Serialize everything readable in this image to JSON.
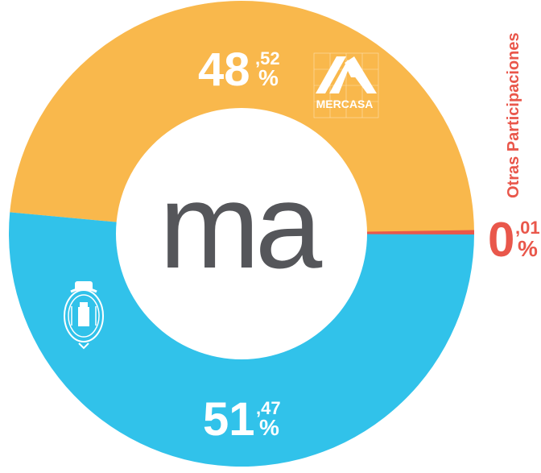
{
  "chart_data": {
    "type": "pie",
    "variant": "donut",
    "slices": [
      {
        "label": "Mercasa",
        "int": "48",
        "dec": ",52",
        "value": 48.52,
        "color": "#f9b84c"
      },
      {
        "label": "Otras Participaciones",
        "int": "0",
        "dec": ",01",
        "value": 0.01,
        "color": "#e9574b"
      },
      {
        "label": "Ayuntamiento",
        "int": "51",
        "dec": ",47",
        "value": 51.47,
        "color": "#31c2ea"
      }
    ],
    "percent_symbol": "%",
    "side_label": "Otras Participaciones",
    "center_logo": "ma",
    "mercasa_logo_text": "MERCASA"
  }
}
